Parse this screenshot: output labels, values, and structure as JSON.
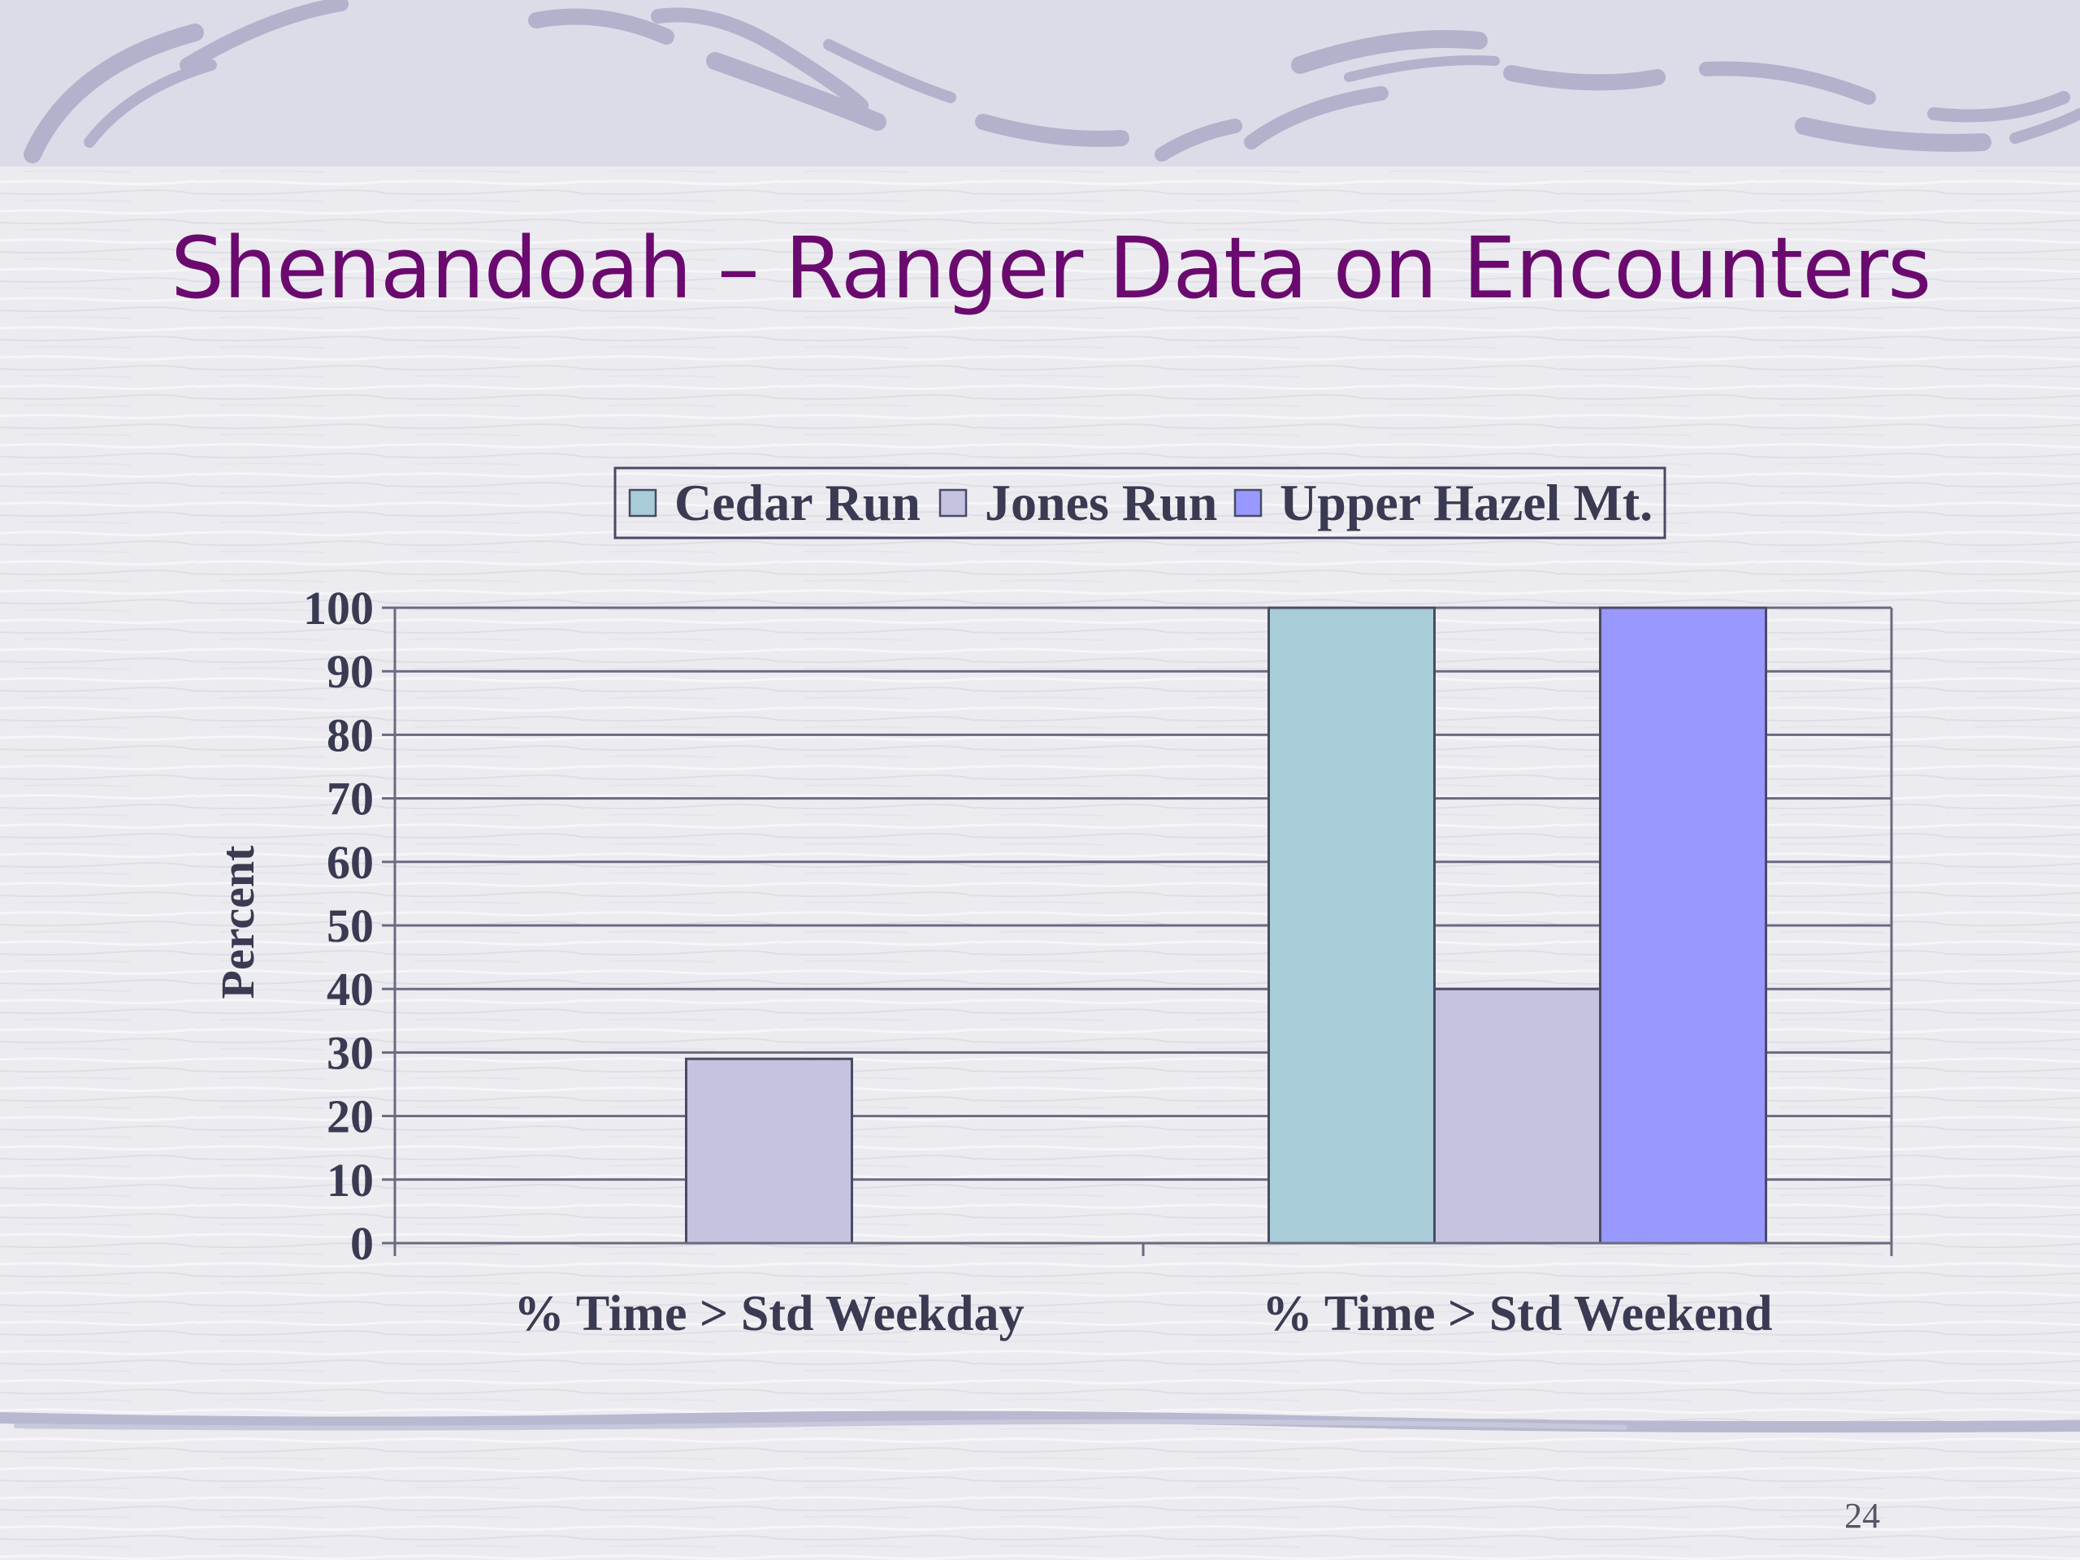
{
  "slide": {
    "title": "Shenandoah – Ranger Data on Encounters",
    "page_number": "24"
  },
  "colors": {
    "title": "#6b0a6e",
    "axis_text": "#3a3a52",
    "gridline": "#6a6a82",
    "cedar_run": "#a8ccd8",
    "jones_run": "#c4c4e0",
    "upper_hazel": "#9898ff",
    "decor_swash": "#b4b4cc"
  },
  "chart_data": {
    "type": "bar",
    "categories": [
      "% Time > Std Weekday",
      "% Time > Std Weekend"
    ],
    "series": [
      {
        "name": "Cedar Run",
        "values": [
          0,
          100
        ]
      },
      {
        "name": "Jones Run",
        "values": [
          29,
          40
        ]
      },
      {
        "name": "Upper Hazel Mt.",
        "values": [
          0,
          100
        ]
      }
    ],
    "title": "",
    "xlabel": "",
    "ylabel": "Percent",
    "ylim": [
      0,
      100
    ],
    "yticks": [
      0,
      10,
      20,
      30,
      40,
      50,
      60,
      70,
      80,
      90,
      100
    ],
    "grid": true,
    "legend": "top"
  }
}
